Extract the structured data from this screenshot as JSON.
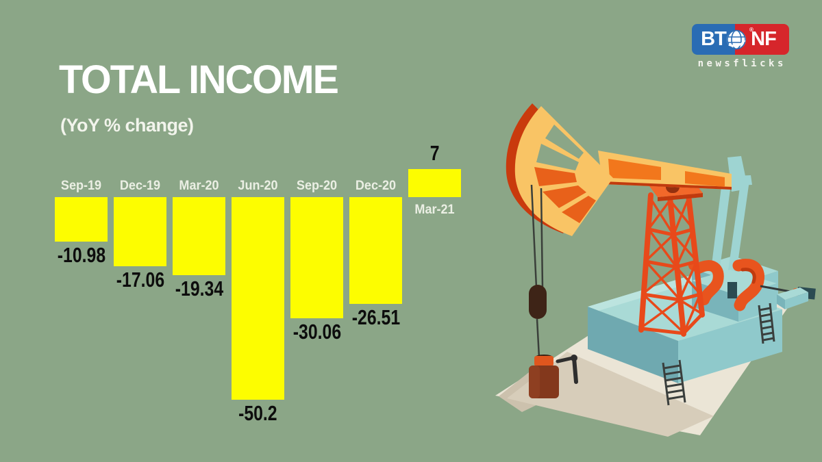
{
  "page": {
    "background_color": "#8BA687"
  },
  "header": {
    "title": "TOTAL INCOME",
    "subtitle": "(YoY % change)"
  },
  "logo": {
    "left_text": "BT",
    "right_text": "NF",
    "registered_mark": "®",
    "tagline": "newsflicks",
    "blue": "#2A6CB4",
    "red": "#D6262B",
    "globe_icon": "globe-icon"
  },
  "chart_data": {
    "type": "bar",
    "title": "TOTAL INCOME",
    "subtitle": "(YoY % change)",
    "categories": [
      "Sep-19",
      "Dec-19",
      "Mar-20",
      "Jun-20",
      "Sep-20",
      "Dec-20",
      "Mar-21"
    ],
    "values": [
      -10.98,
      -17.06,
      -19.34,
      -50.2,
      -30.06,
      -26.51,
      7
    ],
    "value_labels": [
      "-10.98",
      "-17.06",
      "-19.34",
      "-50.2",
      "-30.06",
      "-26.51",
      "7"
    ],
    "bar_color": "#FDFD00",
    "category_label_color": "#EBEFE4",
    "value_label_color": "#0D0D0D",
    "baseline": 0,
    "ylim": [
      -55,
      10
    ],
    "grid": false,
    "legend": null,
    "orientation": "vertical",
    "note": "category labels sit at the zero baseline; value labels at bar ends"
  },
  "illustration": {
    "description": "isometric oil pumpjack with derrick on teal platform",
    "palette": {
      "golden": "#F9C465",
      "orange": "#E8541E",
      "dark_red": "#C93A0D",
      "teal_light": "#A9DAD6",
      "teal_mid": "#8FC9CB",
      "teal_dark": "#6FA9B0",
      "ground_cream": "#EBE5D6",
      "ground_shadow": "#D7CDBA",
      "cable_dark": "#3A3F3A",
      "well_brown": "#83381C"
    }
  }
}
